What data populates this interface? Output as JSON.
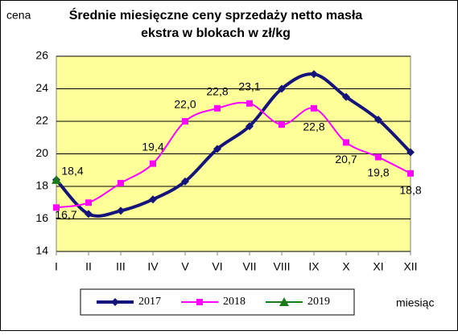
{
  "chart_data": {
    "type": "line",
    "title": [
      "Średnie miesięczne ceny sprzedaży netto masła",
      "ekstra w blokach w zł/kg"
    ],
    "y_label": "cena",
    "x_label": "miesiąc",
    "categories": [
      "I",
      "II",
      "III",
      "IV",
      "V",
      "VI",
      "VII",
      "VIII",
      "IX",
      "X",
      "XI",
      "XII"
    ],
    "series": [
      {
        "name": "2017",
        "color": "#14147a",
        "marker": "diamond",
        "values": [
          18.4,
          16.3,
          16.5,
          17.2,
          18.3,
          20.3,
          21.7,
          24.0,
          24.9,
          23.5,
          22.1,
          20.1
        ]
      },
      {
        "name": "2018",
        "color": "#ff00ff",
        "marker": "square",
        "values": [
          16.7,
          17.0,
          18.2,
          19.4,
          22.0,
          22.8,
          23.1,
          21.8,
          22.8,
          20.7,
          19.8,
          18.8
        ],
        "value_labels": [
          "16,7",
          null,
          null,
          "19,4",
          "22,0",
          "22,8",
          "23,1",
          null,
          "22,8",
          "20,7",
          "19,8",
          "18,8"
        ]
      },
      {
        "name": "2019",
        "color": "#1a7a1a",
        "marker": "triangle",
        "values": [
          18.4,
          null,
          null,
          null,
          null,
          null,
          null,
          null,
          null,
          null,
          null,
          null
        ],
        "value_labels": [
          "18,4",
          null,
          null,
          null,
          null,
          null,
          null,
          null,
          null,
          null,
          null,
          null
        ]
      }
    ],
    "ylim": [
      14,
      26
    ],
    "yticks": [
      14,
      16,
      18,
      20,
      22,
      24,
      26
    ],
    "grid": true,
    "legend": "bottom"
  }
}
